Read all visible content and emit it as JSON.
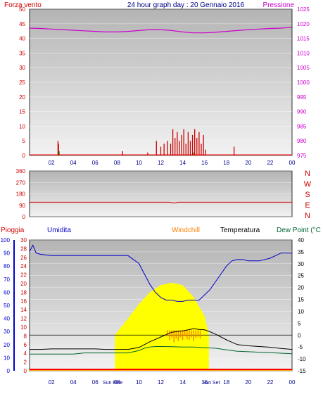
{
  "header": {
    "left_label": "Forza vento",
    "title": "24 hour graph day : 20 Gennaio 2016",
    "right_label": "Pressione"
  },
  "colors": {
    "wind": "#cc0000",
    "gust": "#ff0000",
    "pressure": "#cc00cc",
    "direction": "#cc0000",
    "rain": "#cc0000",
    "humidity": "#0000cc",
    "windchill": "#ff8000",
    "temperature": "#000000",
    "dewpoint": "#006633",
    "sun": "#ffff00",
    "axis_red": "#cc0000",
    "axis_blue": "#0000cc"
  },
  "time_ticks": [
    "02",
    "04",
    "06",
    "08",
    "10",
    "12",
    "14",
    "16",
    "18",
    "20",
    "22",
    "00"
  ],
  "sun_labels": {
    "sunrise": "Sun Rise",
    "sunset": "Sun Set"
  },
  "chart_data": [
    {
      "type": "line",
      "name": "wind_pressure",
      "x_unit": "hour",
      "wind_axis": {
        "ticks": [
          0,
          5,
          10,
          15,
          20,
          25,
          30,
          35,
          40,
          45,
          50
        ],
        "ylim": [
          0,
          50
        ]
      },
      "pressure_axis": {
        "ticks": [
          975,
          980,
          985,
          990,
          995,
          1000,
          1005,
          1010,
          1015,
          1020,
          1025
        ],
        "ylim": [
          975,
          1025
        ]
      },
      "pressure": {
        "x": [
          0,
          1,
          2,
          3,
          4,
          5,
          6,
          7,
          8,
          9,
          10,
          11,
          12,
          13,
          14,
          15,
          16,
          17,
          18,
          19,
          20,
          21,
          22,
          23,
          24
        ],
        "values": [
          1018.5,
          1018.4,
          1018.2,
          1018.0,
          1017.8,
          1017.6,
          1017.4,
          1017.2,
          1017.2,
          1017.4,
          1017.7,
          1018.0,
          1018.0,
          1017.7,
          1017.2,
          1016.9,
          1016.9,
          1017.1,
          1017.4,
          1017.7,
          1018.0,
          1018.2,
          1018.4,
          1018.5,
          1018.8
        ]
      },
      "wind_bars": {
        "x": [
          2.6,
          2.65,
          2.7,
          8.5,
          10.8,
          11.6,
          12.0,
          12.3,
          12.6,
          12.9,
          13.1,
          13.3,
          13.5,
          13.7,
          13.9,
          14.1,
          14.3,
          14.5,
          14.7,
          14.9,
          15.1,
          15.3,
          15.5,
          15.7,
          15.9,
          16.1,
          18.7
        ],
        "values": [
          5,
          4,
          1,
          1.5,
          1,
          5,
          3,
          4,
          5,
          4,
          9,
          6,
          8,
          5,
          7,
          9,
          4,
          8,
          5,
          7,
          9,
          6,
          8,
          4,
          7,
          2,
          3
        ]
      },
      "gust_bars": {
        "x": [
          2.7,
          15.0
        ],
        "values": [
          1.5,
          1
        ]
      }
    },
    {
      "type": "line",
      "name": "wind_direction",
      "x_unit": "hour",
      "ticks": [
        0,
        90,
        180,
        270,
        360
      ],
      "ylim": [
        0,
        360
      ],
      "direction_labels": [
        "N",
        "W",
        "S",
        "E",
        "N"
      ],
      "x": [
        0,
        12.8,
        13.2,
        13.6,
        24
      ],
      "values": [
        114,
        114,
        108,
        114,
        114
      ]
    },
    {
      "type": "line",
      "name": "weather",
      "x_unit": "hour",
      "labels": {
        "rain": "Pioggia",
        "humidity": "Umidita",
        "windchill": "Windchill",
        "temperature": "Temperatura",
        "dewpoint": "Dew Point (°C"
      },
      "humidity_axis": {
        "ticks": [
          0,
          10,
          20,
          30,
          40,
          50,
          60,
          70,
          80,
          90,
          100
        ],
        "ylim": [
          0,
          100
        ]
      },
      "rain_axis": {
        "ticks": [
          0,
          2,
          4,
          6,
          8,
          10,
          12,
          14,
          16,
          18,
          20,
          22,
          24,
          26,
          28,
          30
        ],
        "ylim": [
          0,
          30
        ]
      },
      "temp_axis": {
        "ticks": [
          -15,
          -10,
          -5,
          0,
          5,
          10,
          15,
          20,
          25,
          30,
          35,
          40
        ],
        "ylim": [
          -15,
          40
        ]
      },
      "zero_line": 0,
      "humidity": {
        "x": [
          0,
          0.3,
          0.6,
          1,
          2,
          3,
          4,
          5,
          6,
          7,
          8,
          9,
          10,
          10.5,
          11,
          11.5,
          12,
          12.5,
          13,
          13.5,
          14,
          14.5,
          15,
          15.5,
          16,
          16.5,
          17,
          17.5,
          18,
          18.5,
          19,
          19.5,
          20,
          21,
          22,
          23,
          24
        ],
        "values": [
          91,
          96,
          90,
          89,
          88,
          88,
          88,
          88,
          88,
          88,
          88,
          88,
          82,
          74,
          66,
          60,
          56,
          54,
          54,
          53,
          53,
          54,
          54,
          54,
          58,
          62,
          68,
          74,
          80,
          84,
          85,
          85,
          84,
          84,
          86,
          90,
          90
        ]
      },
      "temperature": {
        "x": [
          0,
          1,
          2,
          3,
          4,
          5,
          6,
          7,
          8,
          9,
          10,
          10.5,
          11,
          11.5,
          12,
          12.5,
          13,
          13.5,
          14,
          14.5,
          15,
          15.5,
          16,
          16.5,
          17,
          17.5,
          18,
          18.5,
          19,
          20,
          21,
          22,
          23,
          24
        ],
        "values": [
          -6,
          -6,
          -5.8,
          -5.8,
          -5.8,
          -5.8,
          -5.8,
          -6,
          -6,
          -6,
          -5.2,
          -4,
          -2.8,
          -1.8,
          -0.8,
          0.2,
          1.2,
          1.5,
          1.8,
          2.2,
          2.7,
          2.4,
          2.2,
          1.4,
          0.4,
          -0.8,
          -2,
          -3,
          -4,
          -4.5,
          -4.8,
          -5.1,
          -5.6,
          -6
        ]
      },
      "dewpoint": {
        "x": [
          0,
          1,
          2,
          3,
          4,
          5,
          6,
          7,
          8,
          9,
          10,
          10.5,
          11,
          11.5,
          12,
          13,
          14,
          15,
          16,
          17,
          18,
          19,
          20,
          21,
          22,
          23,
          24
        ],
        "values": [
          -8,
          -8,
          -8,
          -8,
          -8,
          -7.5,
          -7.5,
          -7.5,
          -7.5,
          -7.5,
          -6.5,
          -5.5,
          -5,
          -4.8,
          -4.8,
          -4.9,
          -5,
          -5,
          -5.3,
          -5.5,
          -6.2,
          -6.8,
          -7,
          -7.2,
          -7.4,
          -7.6,
          -7.8
        ]
      },
      "windchill": {
        "x": [
          12.6,
          12.8,
          13.0,
          13.2,
          13.4,
          13.6,
          13.8,
          14.0,
          14.2,
          14.4,
          14.6,
          14.8,
          15.0,
          15.2,
          15.4,
          15.6
        ],
        "values": [
          -0.5,
          -2,
          -1,
          -3,
          -1.5,
          -2.5,
          -1,
          -2,
          -0.5,
          -1.8,
          -2,
          -1,
          -2.5,
          -1.2,
          -0.8,
          -1.5
        ]
      },
      "sun": {
        "x": [
          7.8,
          9,
          10,
          11,
          12,
          13,
          14,
          15,
          16,
          16.4
        ],
        "values": [
          0,
          7,
          13,
          18,
          21,
          22,
          21,
          16,
          8,
          0
        ]
      },
      "rain": {
        "x": [
          0,
          24
        ],
        "values": [
          0,
          0
        ]
      }
    }
  ]
}
